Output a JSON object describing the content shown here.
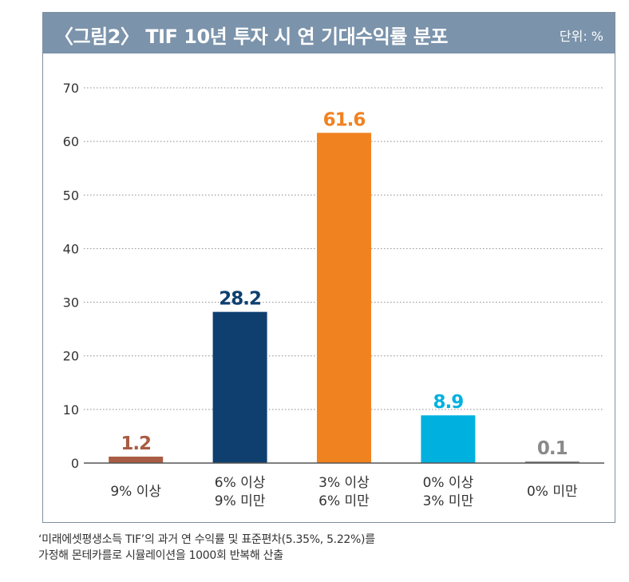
{
  "header": {
    "title": "〈그림2〉 TIF 10년 투자 시 연 기대수익률 분포",
    "unit": "단위: %"
  },
  "chart_data": {
    "type": "bar",
    "title": "〈그림2〉 TIF 10년 투자 시 연 기대수익률 분포",
    "unit": "단위: %",
    "categories": [
      [
        "9% 이상"
      ],
      [
        "6% 이상",
        "9% 미만"
      ],
      [
        "3% 이상",
        "6% 미만"
      ],
      [
        "0% 이상",
        "3% 미만"
      ],
      [
        "0% 미만"
      ]
    ],
    "values": [
      1.2,
      28.2,
      61.6,
      8.9,
      0.1
    ],
    "value_labels": [
      "1.2",
      "28.2",
      "61.6",
      "8.9",
      "0.1"
    ],
    "colors": [
      "#a85c43",
      "#0e3f6f",
      "#f18220",
      "#00b1e0",
      "#8a8a8a"
    ],
    "ylim": [
      0,
      70
    ],
    "yticks": [
      0,
      10,
      20,
      30,
      40,
      50,
      60,
      70
    ],
    "grid": true
  },
  "caption": {
    "line1": "‘미래에셋평생소득 TIF’의 과거 연 수익률 및 표준편차(5.35%, 5.22%)를",
    "line2": "가정해 몬테카를로 시뮬레이션을 1000회 반복해 산출"
  }
}
